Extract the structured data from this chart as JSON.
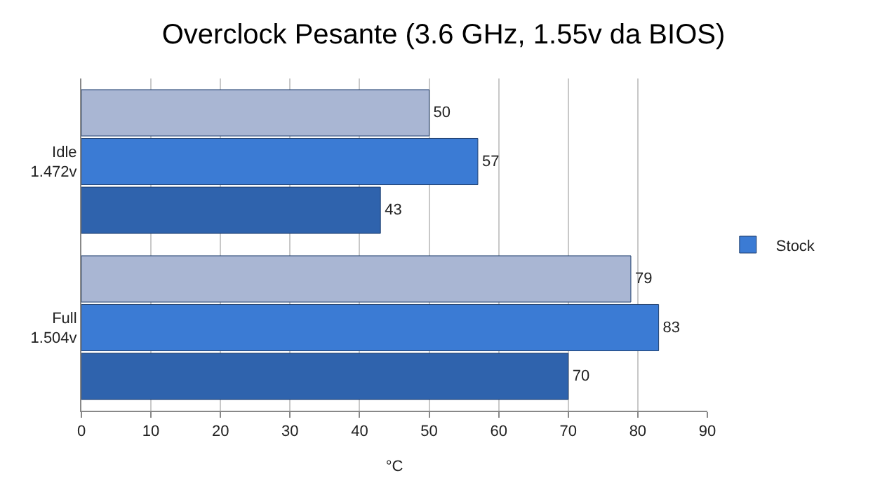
{
  "chart_data": {
    "type": "bar",
    "orientation": "horizontal",
    "title": "Overclock Pesante (3.6 GHz, 1.55v da BIOS)",
    "xlabel": "°C",
    "categories": [
      "Idle\n1.472v",
      "Full\n1.504v"
    ],
    "series": [
      {
        "color": "#a9b6d3",
        "values": [
          50,
          79
        ]
      },
      {
        "name": "Stock",
        "color": "#3b7bd4",
        "values": [
          57,
          83
        ]
      },
      {
        "color": "#2f63ad",
        "values": [
          43,
          70
        ]
      }
    ],
    "xlim": [
      0,
      90
    ],
    "xticks": [
      0,
      10,
      20,
      30,
      40,
      50,
      60,
      70,
      80,
      90
    ],
    "grid": "x",
    "legend": "right",
    "data_labels": true
  }
}
